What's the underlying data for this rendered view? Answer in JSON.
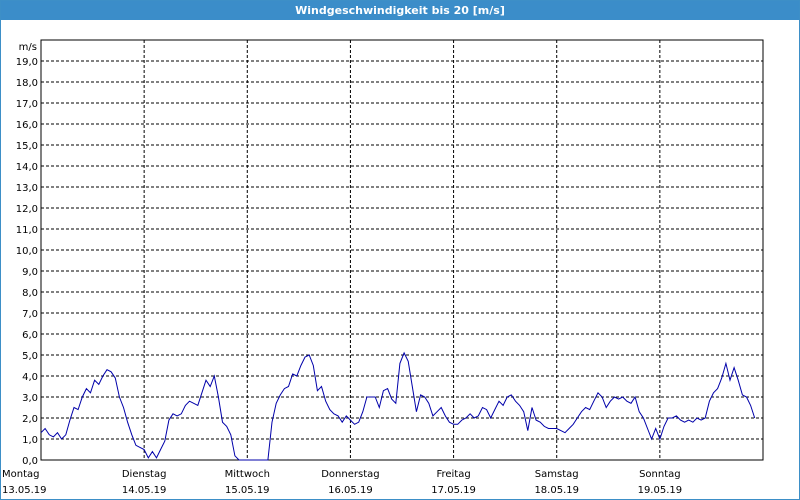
{
  "window": {
    "title": "Windgeschwindigkeit bis 20 [m/s]"
  },
  "chart_data": {
    "type": "line",
    "title": "Windgeschwindigkeit bis 20 [m/s]",
    "ylabel": "m/s",
    "xlabel": "",
    "ylim": [
      0,
      20
    ],
    "yticks": [
      "0,0",
      "1,0",
      "2,0",
      "3,0",
      "4,0",
      "5,0",
      "6,0",
      "7,0",
      "8,0",
      "9,0",
      "10,0",
      "11,0",
      "12,0",
      "13,0",
      "14,0",
      "15,0",
      "16,0",
      "17,0",
      "18,0",
      "19,0"
    ],
    "xlim": [
      0,
      7
    ],
    "grid": true,
    "days": [
      {
        "day": "Montag",
        "date": "13.05.19"
      },
      {
        "day": "Dienstag",
        "date": "14.05.19"
      },
      {
        "day": "Mittwoch",
        "date": "15.05.19"
      },
      {
        "day": "Donnerstag",
        "date": "16.05.19"
      },
      {
        "day": "Freitag",
        "date": "17.05.19"
      },
      {
        "day": "Samstag",
        "date": "18.05.19"
      },
      {
        "day": "Sonntag",
        "date": "19.05.19"
      }
    ],
    "series": [
      {
        "color": "#0000aa",
        "x": [
          0,
          0.04,
          0.08,
          0.12,
          0.16,
          0.2,
          0.24,
          0.28,
          0.32,
          0.36,
          0.4,
          0.44,
          0.48,
          0.52,
          0.56,
          0.6,
          0.64,
          0.68,
          0.72,
          0.76,
          0.8,
          0.84,
          0.88,
          0.92,
          0.96,
          1.0,
          1.04,
          1.08,
          1.12,
          1.16,
          1.2,
          1.24,
          1.28,
          1.32,
          1.36,
          1.4,
          1.44,
          1.48,
          1.52,
          1.56,
          1.6,
          1.64,
          1.68,
          1.72,
          1.76,
          1.8,
          1.84,
          1.88,
          1.92,
          1.96,
          2.0,
          2.04,
          2.08,
          2.12,
          2.16,
          2.2,
          2.24,
          2.28,
          2.32,
          2.36,
          2.4,
          2.44,
          2.48,
          2.52,
          2.56,
          2.6,
          2.64,
          2.68,
          2.72,
          2.76,
          2.8,
          2.84,
          2.88,
          2.92,
          2.96,
          3.0,
          3.04,
          3.08,
          3.12,
          3.16,
          3.2,
          3.24,
          3.28,
          3.32,
          3.36,
          3.4,
          3.44,
          3.48,
          3.52,
          3.56,
          3.6,
          3.64,
          3.68,
          3.72,
          3.76,
          3.8,
          3.84,
          3.88,
          3.92,
          3.96,
          4.0,
          4.04,
          4.08,
          4.12,
          4.16,
          4.2,
          4.24,
          4.28,
          4.32,
          4.36,
          4.4,
          4.44,
          4.48,
          4.52,
          4.56,
          4.6,
          4.64,
          4.68,
          4.72,
          4.76,
          4.8,
          4.84,
          4.88,
          4.92,
          4.96,
          5.0,
          5.04,
          5.08,
          5.12,
          5.16,
          5.2,
          5.24,
          5.28,
          5.32,
          5.36,
          5.4,
          5.44,
          5.48,
          5.52,
          5.56,
          5.6,
          5.64,
          5.68,
          5.72,
          5.76,
          5.8,
          5.84,
          5.88,
          5.92,
          5.96,
          6.0,
          6.04,
          6.08,
          6.12,
          6.16,
          6.2,
          6.24,
          6.28,
          6.32,
          6.36,
          6.4,
          6.44,
          6.48,
          6.52,
          6.56,
          6.6,
          6.64,
          6.68,
          6.72,
          6.76,
          6.8,
          6.84,
          6.88,
          6.92
        ],
        "y": [
          1.3,
          1.5,
          1.2,
          1.1,
          1.3,
          1.0,
          1.2,
          1.9,
          2.5,
          2.4,
          3.0,
          3.4,
          3.2,
          3.8,
          3.6,
          4.0,
          4.3,
          4.2,
          3.9,
          3.0,
          2.5,
          1.8,
          1.2,
          0.7,
          0.6,
          0.5,
          0.1,
          0.4,
          0.1,
          0.5,
          0.9,
          1.9,
          2.2,
          2.1,
          2.2,
          2.6,
          2.8,
          2.7,
          2.6,
          3.2,
          3.8,
          3.5,
          4.0,
          3.0,
          1.8,
          1.6,
          1.2,
          0.2,
          0.0,
          0.0,
          0.0,
          0.0,
          0.0,
          0.0,
          0.0,
          0.0,
          1.8,
          2.7,
          3.1,
          3.4,
          3.5,
          4.1,
          4.0,
          4.5,
          4.9,
          5.0,
          4.5,
          3.3,
          3.5,
          2.8,
          2.4,
          2.2,
          2.1,
          1.8,
          2.1,
          1.9,
          1.7,
          1.8,
          2.3,
          3.0,
          3.0,
          3.0,
          2.5,
          3.3,
          3.4,
          2.9,
          2.7,
          4.6,
          5.1,
          4.7,
          3.5,
          2.3,
          3.1,
          3.0,
          2.7,
          2.1,
          2.3,
          2.5,
          2.1,
          1.8,
          1.7,
          1.7,
          1.9,
          2.0,
          2.2,
          2.0,
          2.1,
          2.5,
          2.4,
          2.0,
          2.4,
          2.8,
          2.6,
          3.0,
          3.1,
          2.8,
          2.6,
          2.3,
          1.4,
          2.5,
          1.9,
          1.8,
          1.6,
          1.5,
          1.5,
          1.5,
          1.4,
          1.3,
          1.5,
          1.7,
          2.0,
          2.3,
          2.5,
          2.4,
          2.8,
          3.2,
          3.0,
          2.5,
          2.8,
          3.0,
          2.9,
          3.0,
          2.8,
          2.7,
          3.0,
          2.3,
          2.0,
          1.5,
          1.0,
          1.5,
          1.0,
          1.6,
          2.0,
          2.0,
          2.1,
          1.9,
          1.8,
          1.9,
          1.8,
          2.0,
          1.9,
          2.0,
          2.8,
          3.2,
          3.4,
          3.9,
          4.6,
          3.8,
          4.4,
          3.8,
          3.1,
          3.0,
          2.6,
          2.0
        ]
      }
    ]
  }
}
